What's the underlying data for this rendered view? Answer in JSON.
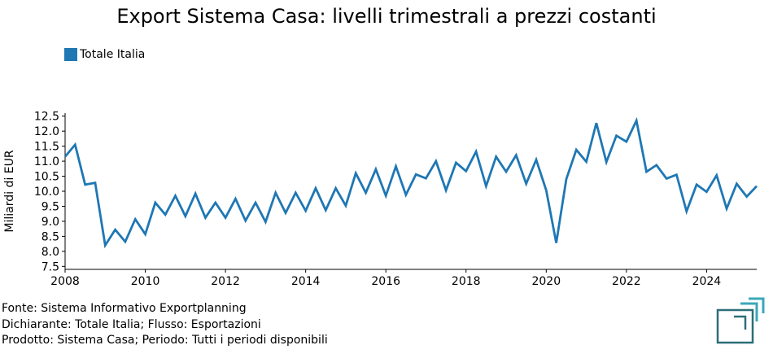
{
  "title": "Export Sistema Casa: livelli trimestrali a prezzi costanti",
  "legend": {
    "label": "Totale Italia",
    "color": "#1f77b4"
  },
  "source_lines": [
    "Fonte: Sistema Informativo Exportplanning",
    "Dichiarante: Totale Italia; Flusso: Esportazioni",
    "Prodotto: Sistema Casa; Periodo: Tutti i periodi disponibili"
  ],
  "chart_data": {
    "type": "line",
    "title": "Export Sistema Casa: livelli trimestrali a prezzi costanti",
    "xlabel": "",
    "ylabel": "Miliardi di EUR",
    "xlim": [
      2008,
      2025.25
    ],
    "ylim": [
      7.4,
      12.6
    ],
    "x_ticks": [
      "2008",
      "2010",
      "2012",
      "2014",
      "2016",
      "2018",
      "2020",
      "2022",
      "2024"
    ],
    "y_ticks": [
      "7.5",
      "8.0",
      "8.5",
      "9.0",
      "9.5",
      "10.0",
      "10.5",
      "11.0",
      "11.5",
      "12.0",
      "12.5"
    ],
    "grid": false,
    "legend_position": "top-left",
    "series": [
      {
        "name": "Totale Italia",
        "color": "#1f77b4",
        "start": 2008,
        "step": 0.25,
        "values": [
          11.15,
          11.55,
          10.22,
          10.28,
          8.2,
          8.72,
          8.32,
          9.07,
          8.57,
          9.62,
          9.22,
          9.85,
          9.17,
          9.92,
          9.12,
          9.62,
          9.12,
          9.75,
          9.02,
          9.62,
          8.98,
          9.95,
          9.28,
          9.95,
          9.35,
          10.1,
          9.37,
          10.1,
          9.52,
          10.6,
          9.95,
          10.73,
          9.85,
          10.83,
          9.88,
          10.56,
          10.43,
          11.0,
          10.03,
          10.95,
          10.67,
          11.32,
          10.17,
          11.15,
          10.65,
          11.2,
          10.25,
          11.05,
          10.03,
          8.28,
          10.4,
          11.38,
          10.98,
          12.27,
          10.97,
          11.85,
          11.65,
          12.35,
          10.65,
          10.87,
          10.42,
          10.55,
          9.33,
          10.22,
          9.98,
          10.53,
          9.42,
          10.25,
          9.82,
          10.17
        ]
      }
    ]
  }
}
